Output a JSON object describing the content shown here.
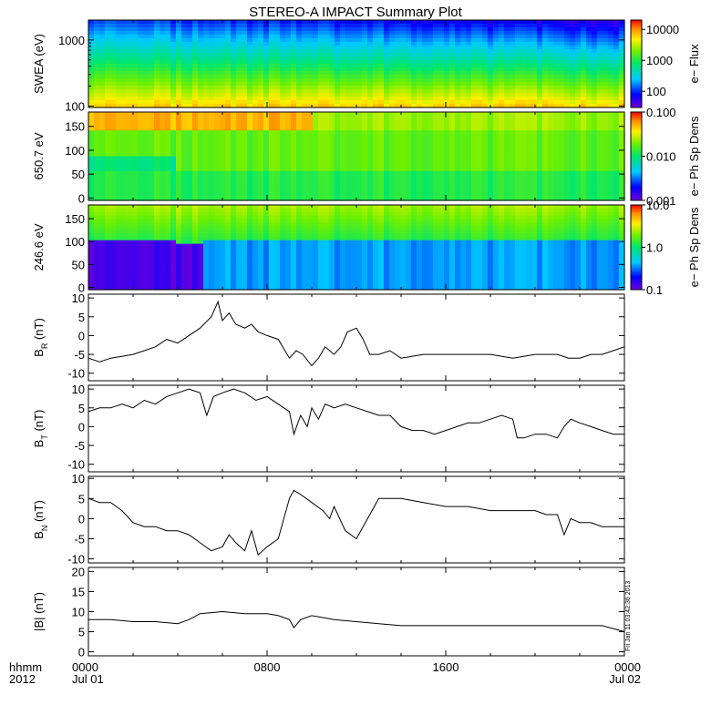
{
  "title": "STEREO-A IMPACT Summary Plot",
  "time_axis": {
    "row1_label": "hhmm",
    "row2_label": "2012",
    "ticks": [
      {
        "hour": 0,
        "hhmm": "0000",
        "date": "Jul 01"
      },
      {
        "hour": 8,
        "hhmm": "0800",
        "date": ""
      },
      {
        "hour": 16,
        "hhmm": "1600",
        "date": ""
      },
      {
        "hour": 24,
        "hhmm": "0000",
        "date": "Jul 02"
      }
    ]
  },
  "side_stamp": "Fri Jan 11 03:42:36 2013",
  "chart_data": [
    {
      "type": "heatmap",
      "ylabel": "SWEA (eV)",
      "yscale": "log",
      "ylim": [
        95,
        2000
      ],
      "yticks": [
        {
          "v": 100,
          "t": "100"
        },
        {
          "v": 1000,
          "t": "1000"
        }
      ],
      "colorbar": {
        "label": "e− Flux",
        "scale": "log",
        "range": [
          30,
          20000
        ],
        "ticks": [
          {
            "v": 100,
            "t": "100"
          },
          {
            "v": 1000,
            "t": "1000"
          },
          {
            "v": 10000,
            "t": "10000"
          }
        ]
      }
    },
    {
      "type": "heatmap",
      "ylabel": "650.7 eV",
      "yscale": "linear",
      "ylim": [
        -5,
        180
      ],
      "yticks": [
        {
          "v": 0,
          "t": "0"
        },
        {
          "v": 50,
          "t": "50"
        },
        {
          "v": 100,
          "t": "100"
        },
        {
          "v": 150,
          "t": "150"
        }
      ],
      "colorbar": {
        "label": "e− Ph Sp Dens",
        "scale": "log",
        "range": [
          0.001,
          0.1
        ],
        "ticks": [
          {
            "v": 0.001,
            "t": "0.001"
          },
          {
            "v": 0.01,
            "t": "0.010"
          },
          {
            "v": 0.1,
            "t": "0.100"
          }
        ]
      }
    },
    {
      "type": "heatmap",
      "ylabel": "246.6 eV",
      "yscale": "linear",
      "ylim": [
        -5,
        180
      ],
      "yticks": [
        {
          "v": 0,
          "t": "0"
        },
        {
          "v": 50,
          "t": "50"
        },
        {
          "v": 100,
          "t": "100"
        },
        {
          "v": 150,
          "t": "150"
        }
      ],
      "colorbar": {
        "label": "e− Ph Sp Dens",
        "scale": "log",
        "range": [
          0.1,
          10
        ],
        "ticks": [
          {
            "v": 0.1,
            "t": "0.1"
          },
          {
            "v": 1,
            "t": "1.0"
          },
          {
            "v": 10,
            "t": "10.0"
          }
        ]
      }
    },
    {
      "type": "line",
      "ylabel": "B_R (nT)",
      "ylim": [
        -12,
        11
      ],
      "yticks": [
        -10,
        -5,
        0,
        5,
        10
      ],
      "x": [
        0,
        0.5,
        1,
        1.5,
        2,
        2.5,
        3,
        3.5,
        4,
        4.5,
        5,
        5.5,
        5.8,
        6,
        6.3,
        6.6,
        7,
        7.3,
        7.6,
        8,
        8.5,
        9,
        9.3,
        9.6,
        10,
        10.3,
        10.6,
        11,
        11.3,
        11.6,
        12,
        12.3,
        12.6,
        13,
        13.5,
        14,
        15,
        16,
        17,
        18,
        19,
        20,
        21,
        21.5,
        22,
        22.5,
        23,
        23.5,
        24
      ],
      "y": [
        -6,
        -7,
        -6,
        -5.5,
        -5,
        -4,
        -3,
        -1,
        -2,
        0,
        2,
        5,
        9,
        4,
        6,
        3,
        2,
        3,
        1,
        0,
        -1,
        -6,
        -4,
        -5,
        -8,
        -6,
        -3,
        -5,
        -3,
        1,
        2,
        -1,
        -5,
        -5,
        -4,
        -6,
        -5,
        -5,
        -5,
        -5,
        -6,
        -5,
        -5,
        -6,
        -6,
        -5,
        -5,
        -4,
        -3
      ]
    },
    {
      "type": "line",
      "ylabel": "B_T (nT)",
      "ylim": [
        -12,
        11
      ],
      "yticks": [
        -10,
        -5,
        0,
        5,
        10
      ],
      "x": [
        0,
        0.5,
        1,
        1.5,
        2,
        2.5,
        3,
        3.5,
        4,
        4.5,
        5,
        5.3,
        5.6,
        6,
        6.5,
        7,
        7.5,
        8,
        8.5,
        9,
        9.2,
        9.5,
        9.8,
        10,
        10.3,
        10.6,
        11,
        11.5,
        12,
        12.5,
        13,
        13.5,
        14,
        14.5,
        15,
        15.5,
        16,
        16.5,
        17,
        17.5,
        18,
        18.5,
        19,
        19.2,
        19.5,
        20,
        20.5,
        21,
        21.3,
        21.6,
        22,
        22.5,
        23,
        23.5,
        24
      ],
      "y": [
        4,
        5,
        5,
        6,
        5,
        7,
        6,
        8,
        9,
        10,
        9,
        3,
        8,
        9,
        10,
        9,
        7,
        8,
        6,
        4,
        -2,
        3,
        0,
        5,
        2,
        6,
        5,
        6,
        5,
        4,
        3,
        3,
        0,
        -1,
        -1,
        -2,
        -1,
        0,
        1,
        1,
        2,
        3,
        2,
        -3,
        -3,
        -2,
        -2,
        -3,
        0,
        2,
        1,
        0,
        -1,
        -2,
        -2
      ]
    },
    {
      "type": "line",
      "ylabel": "B_N (nT)",
      "ylim": [
        -11,
        10.5
      ],
      "yticks": [
        -10,
        -5,
        0,
        5,
        10
      ],
      "x": [
        0,
        0.5,
        1,
        1.5,
        2,
        2.5,
        3,
        3.5,
        4,
        4.5,
        5,
        5.5,
        6,
        6.3,
        6.6,
        7,
        7.3,
        7.6,
        8,
        8.5,
        9,
        9.2,
        9.5,
        10,
        10.5,
        10.8,
        11,
        11.5,
        12,
        12.5,
        13,
        14,
        15,
        16,
        17,
        18,
        19,
        20,
        20.5,
        21,
        21.3,
        21.6,
        22,
        22.5,
        23,
        23.5,
        24
      ],
      "y": [
        5,
        4,
        4,
        2,
        -1,
        -2,
        -2,
        -3,
        -3,
        -4,
        -6,
        -8,
        -7,
        -4,
        -6,
        -8,
        -3,
        -9,
        -7,
        -5,
        5,
        7,
        6,
        4,
        2,
        0,
        3,
        -3,
        -5,
        0,
        5,
        5,
        4,
        3,
        3,
        2,
        2,
        2,
        1,
        1,
        -4,
        0,
        -1,
        -1,
        -2,
        -2,
        -2
      ]
    },
    {
      "type": "line",
      "ylabel": "|B| (nT)",
      "ylim": [
        -1,
        21
      ],
      "yticks": [
        0,
        5,
        10,
        15,
        20
      ],
      "x": [
        0,
        1,
        2,
        3,
        4,
        4.5,
        5,
        6,
        7,
        8,
        8.5,
        9,
        9.2,
        9.5,
        10,
        11,
        12,
        13,
        14,
        15,
        16,
        17,
        18,
        19,
        20,
        21,
        22,
        23,
        24
      ],
      "y": [
        8,
        8,
        7.5,
        7.5,
        7,
        8,
        9.5,
        10,
        9.5,
        9.5,
        9,
        8,
        6,
        8,
        9,
        8,
        7.5,
        7,
        6.5,
        6.5,
        6.5,
        6.5,
        6.5,
        6.5,
        6.5,
        6.5,
        6.5,
        6.5,
        5
      ]
    }
  ]
}
